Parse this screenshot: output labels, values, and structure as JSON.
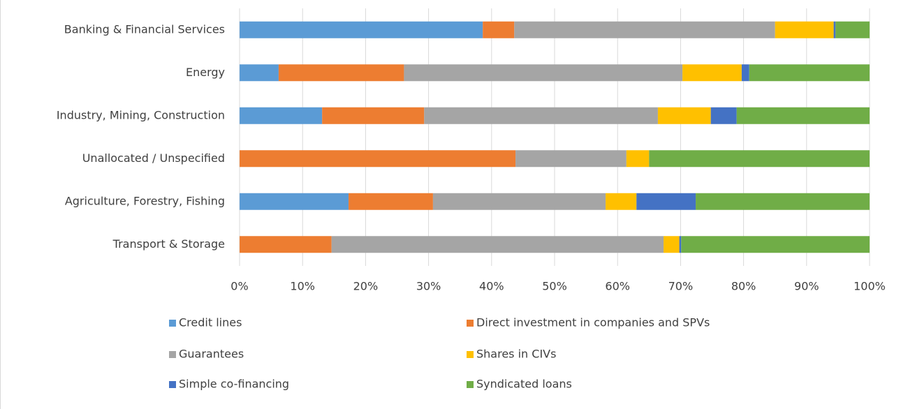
{
  "chart_data": {
    "type": "stacked_bar_horizontal",
    "categories": [
      "Banking & Financial Services",
      "Energy",
      "Industry, Mining, Construction",
      "Unallocated / Unspecified",
      "Agriculture, Forestry, Fishing",
      "Transport & Storage"
    ],
    "series": [
      {
        "name": "Credit lines",
        "color": "#5b9bd5",
        "values": [
          38.6,
          6.2,
          13.1,
          0,
          17.3,
          0
        ]
      },
      {
        "name": "Direct investment in companies and SPVs",
        "color": "#ed7d31",
        "values": [
          5.0,
          19.9,
          16.2,
          43.8,
          13.4,
          14.6
        ]
      },
      {
        "name": "Guarantees",
        "color": "#a5a5a5",
        "values": [
          41.4,
          44.2,
          37.1,
          17.6,
          27.4,
          52.7
        ]
      },
      {
        "name": "Shares in CIVs",
        "color": "#ffc000",
        "values": [
          9.3,
          9.4,
          8.4,
          3.6,
          4.9,
          2.5
        ]
      },
      {
        "name": "Simple co-financing",
        "color": "#4472c4",
        "values": [
          0.3,
          1.2,
          4.1,
          0,
          9.4,
          0.3
        ]
      },
      {
        "name": "Syndicated loans",
        "color": "#70ad47",
        "values": [
          5.4,
          19.1,
          21.1,
          35.0,
          27.6,
          29.9
        ]
      }
    ],
    "xlim": [
      0,
      100
    ],
    "xticks": [
      {
        "value": 0,
        "label": "0%"
      },
      {
        "value": 10,
        "label": "10%"
      },
      {
        "value": 20,
        "label": "20%"
      },
      {
        "value": 30,
        "label": "30%"
      },
      {
        "value": 40,
        "label": "40%"
      },
      {
        "value": 50,
        "label": "50%"
      },
      {
        "value": 60,
        "label": "60%"
      },
      {
        "value": 70,
        "label": "70%"
      },
      {
        "value": 80,
        "label": "80%"
      },
      {
        "value": 90,
        "label": "90%"
      },
      {
        "value": 100,
        "label": "100%"
      }
    ],
    "grid": true,
    "legend": "bottom"
  }
}
